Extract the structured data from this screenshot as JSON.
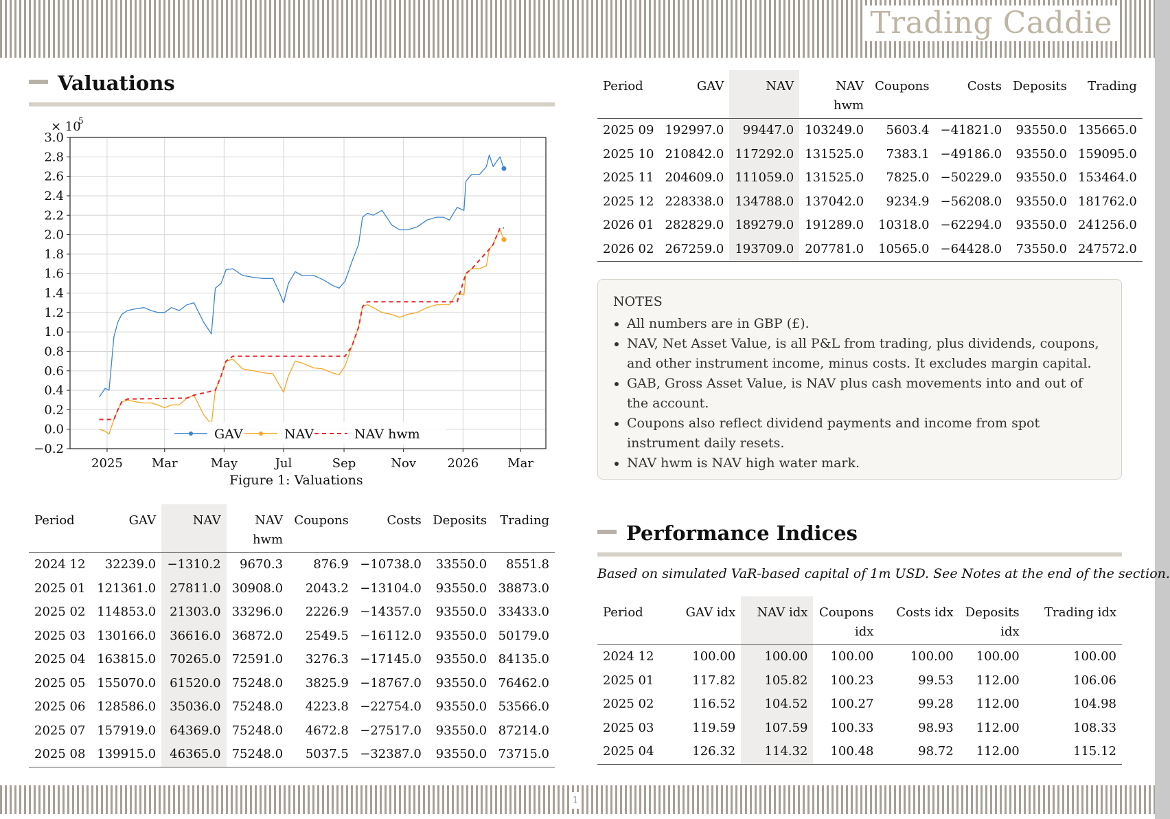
{
  "header": {
    "brand": "Trading Caddie"
  },
  "footer": {
    "page_number": "1"
  },
  "valuations": {
    "title": "Valuations",
    "figure_caption": "Figure 1: Valuations",
    "columns": [
      "Period",
      "GAV",
      "NAV",
      "NAV hwm",
      "Coupons",
      "Costs",
      "Deposits",
      "Trading"
    ],
    "rows_left": [
      [
        "2024 12",
        "32239.0",
        "−1310.2",
        "9670.3",
        "876.9",
        "−10738.0",
        "33550.0",
        "8551.8"
      ],
      [
        "2025 01",
        "121361.0",
        "27811.0",
        "30908.0",
        "2043.2",
        "−13104.0",
        "93550.0",
        "38873.0"
      ],
      [
        "2025 02",
        "114853.0",
        "21303.0",
        "33296.0",
        "2226.9",
        "−14357.0",
        "93550.0",
        "33433.0"
      ],
      [
        "2025 03",
        "130166.0",
        "36616.0",
        "36872.0",
        "2549.5",
        "−16112.0",
        "93550.0",
        "50179.0"
      ],
      [
        "2025 04",
        "163815.0",
        "70265.0",
        "72591.0",
        "3276.3",
        "−17145.0",
        "93550.0",
        "84135.0"
      ],
      [
        "2025 05",
        "155070.0",
        "61520.0",
        "75248.0",
        "3825.9",
        "−18767.0",
        "93550.0",
        "76462.0"
      ],
      [
        "2025 06",
        "128586.0",
        "35036.0",
        "75248.0",
        "4223.8",
        "−22754.0",
        "93550.0",
        "53566.0"
      ],
      [
        "2025 07",
        "157919.0",
        "64369.0",
        "75248.0",
        "4672.8",
        "−27517.0",
        "93550.0",
        "87214.0"
      ],
      [
        "2025 08",
        "139915.0",
        "46365.0",
        "75248.0",
        "5037.5",
        "−32387.0",
        "93550.0",
        "73715.0"
      ]
    ],
    "rows_right": [
      [
        "2025 09",
        "192997.0",
        "99447.0",
        "103249.0",
        "5603.4",
        "−41821.0",
        "93550.0",
        "135665.0"
      ],
      [
        "2025 10",
        "210842.0",
        "117292.0",
        "131525.0",
        "7383.1",
        "−49186.0",
        "93550.0",
        "159095.0"
      ],
      [
        "2025 11",
        "204609.0",
        "111059.0",
        "131525.0",
        "7825.0",
        "−50229.0",
        "93550.0",
        "153464.0"
      ],
      [
        "2025 12",
        "228338.0",
        "134788.0",
        "137042.0",
        "9234.9",
        "−56208.0",
        "93550.0",
        "181762.0"
      ],
      [
        "2026 01",
        "282829.0",
        "189279.0",
        "191289.0",
        "10318.0",
        "−62294.0",
        "93550.0",
        "241256.0"
      ],
      [
        "2026 02",
        "267259.0",
        "193709.0",
        "207781.0",
        "10565.0",
        "−64428.0",
        "73550.0",
        "247572.0"
      ]
    ]
  },
  "notes": {
    "heading": "NOTES",
    "items": [
      "All numbers are in GBP (£).",
      "NAV, Net Asset Value, is all P&L from trading, plus dividends, coupons, and other instrument income, minus costs. It excludes margin capital.",
      "GAB, Gross Asset Value, is NAV plus cash movements into and out of the account.",
      "Coupons also reflect dividend payments and income from spot instrument daily resets.",
      "NAV hwm is NAV high water mark."
    ]
  },
  "performance": {
    "title": "Performance Indices",
    "note": "Based on simulated VaR-based capital of 1m USD. See Notes at the end of the section.",
    "columns": [
      "Period",
      "GAV idx",
      "NAV idx",
      "Coupons idx",
      "Costs idx",
      "Deposits idx",
      "Trading idx"
    ],
    "rows": [
      [
        "2024 12",
        "100.00",
        "100.00",
        "100.00",
        "100.00",
        "100.00",
        "100.00"
      ],
      [
        "2025 01",
        "117.82",
        "105.82",
        "100.23",
        "99.53",
        "112.00",
        "106.06"
      ],
      [
        "2025 02",
        "116.52",
        "104.52",
        "100.27",
        "99.28",
        "112.00",
        "104.98"
      ],
      [
        "2025 03",
        "119.59",
        "107.59",
        "100.33",
        "98.93",
        "112.00",
        "108.33"
      ],
      [
        "2025 04",
        "126.32",
        "114.32",
        "100.48",
        "98.72",
        "112.00",
        "115.12"
      ]
    ]
  },
  "chart_data": {
    "type": "line",
    "multiplier_label": "× 10",
    "multiplier_exponent": "5",
    "ylim": [
      -0.2,
      3.0
    ],
    "yticks": [
      -0.2,
      0.0,
      0.2,
      0.4,
      0.6,
      0.8,
      1.0,
      1.2,
      1.4,
      1.6,
      1.8,
      2.0,
      2.2,
      2.4,
      2.6,
      2.8,
      3.0
    ],
    "ytick_labels": [
      "−0.2",
      "0.0",
      "0.2",
      "0.4",
      "0.6",
      "0.8",
      "1.0",
      "1.2",
      "1.4",
      "1.6",
      "1.8",
      "2.0",
      "2.2",
      "2.4",
      "2.6",
      "2.8",
      "3.0"
    ],
    "xlim": [
      "2024-11-24",
      "2026-03-27"
    ],
    "xticks": [
      "2025-01-01",
      "2025-03-01",
      "2025-05-01",
      "2025-07-01",
      "2025-09-01",
      "2025-11-01",
      "2026-01-01",
      "2026-03-01"
    ],
    "xtick_labels": [
      "2025",
      "Mar",
      "May",
      "Jul",
      "Sep",
      "Nov",
      "2026",
      "Mar"
    ],
    "grid": true,
    "legend": "bottom-center",
    "colors": {
      "GAV": "#3c84cf",
      "NAV": "#f5a623",
      "NAV hwm": "#e8262b"
    },
    "series": [
      {
        "name": "GAV",
        "style": "solid-marker-end",
        "x": [
          "2024-12-24",
          "2024-12-30",
          "2025-01-03",
          "2025-01-08",
          "2025-01-12",
          "2025-01-16",
          "2025-01-22",
          "2025-01-31",
          "2025-02-08",
          "2025-02-15",
          "2025-02-22",
          "2025-03-01",
          "2025-03-08",
          "2025-03-16",
          "2025-03-24",
          "2025-03-31",
          "2025-04-10",
          "2025-04-18",
          "2025-04-22",
          "2025-04-28",
          "2025-05-03",
          "2025-05-10",
          "2025-05-20",
          "2025-06-01",
          "2025-06-10",
          "2025-06-20",
          "2025-06-27",
          "2025-07-01",
          "2025-07-06",
          "2025-07-13",
          "2025-07-20",
          "2025-08-01",
          "2025-08-10",
          "2025-08-20",
          "2025-08-27",
          "2025-09-02",
          "2025-09-09",
          "2025-09-16",
          "2025-09-20",
          "2025-09-25",
          "2025-10-01",
          "2025-10-10",
          "2025-10-20",
          "2025-10-28",
          "2025-11-05",
          "2025-11-15",
          "2025-11-25",
          "2025-12-05",
          "2025-12-12",
          "2025-12-18",
          "2025-12-26",
          "2026-01-02",
          "2026-01-04",
          "2026-01-10",
          "2026-01-18",
          "2026-01-25",
          "2026-01-28",
          "2026-02-01",
          "2026-02-05",
          "2026-02-08",
          "2026-02-12"
        ],
        "y": [
          0.33,
          0.42,
          0.4,
          0.95,
          1.1,
          1.18,
          1.22,
          1.24,
          1.25,
          1.22,
          1.2,
          1.2,
          1.25,
          1.22,
          1.28,
          1.3,
          1.1,
          0.98,
          1.45,
          1.5,
          1.64,
          1.65,
          1.58,
          1.56,
          1.55,
          1.55,
          1.4,
          1.3,
          1.5,
          1.62,
          1.58,
          1.58,
          1.54,
          1.48,
          1.45,
          1.52,
          1.72,
          1.9,
          2.18,
          2.22,
          2.2,
          2.25,
          2.1,
          2.05,
          2.05,
          2.08,
          2.15,
          2.18,
          2.18,
          2.15,
          2.28,
          2.25,
          2.55,
          2.62,
          2.62,
          2.7,
          2.82,
          2.7,
          2.76,
          2.8,
          2.68
        ]
      },
      {
        "name": "NAV",
        "style": "solid-marker-end",
        "x": [
          "2024-12-24",
          "2024-12-30",
          "2025-01-03",
          "2025-01-08",
          "2025-01-12",
          "2025-01-16",
          "2025-01-22",
          "2025-01-31",
          "2025-02-08",
          "2025-02-15",
          "2025-02-22",
          "2025-03-01",
          "2025-03-08",
          "2025-03-16",
          "2025-03-24",
          "2025-03-31",
          "2025-04-10",
          "2025-04-18",
          "2025-04-22",
          "2025-04-28",
          "2025-05-03",
          "2025-05-10",
          "2025-05-20",
          "2025-06-01",
          "2025-06-10",
          "2025-06-20",
          "2025-06-27",
          "2025-07-01",
          "2025-07-06",
          "2025-07-13",
          "2025-07-20",
          "2025-08-01",
          "2025-08-10",
          "2025-08-20",
          "2025-08-27",
          "2025-09-02",
          "2025-09-09",
          "2025-09-16",
          "2025-09-20",
          "2025-09-25",
          "2025-10-01",
          "2025-10-10",
          "2025-10-20",
          "2025-10-28",
          "2025-11-05",
          "2025-11-15",
          "2025-11-25",
          "2025-12-05",
          "2025-12-12",
          "2025-12-18",
          "2025-12-26",
          "2026-01-02",
          "2026-01-04",
          "2026-01-10",
          "2026-01-18",
          "2026-01-25",
          "2026-01-28",
          "2026-02-01",
          "2026-02-05",
          "2026-02-08",
          "2026-02-12"
        ],
        "y": [
          0.0,
          -0.02,
          -0.05,
          0.1,
          0.2,
          0.28,
          0.3,
          0.28,
          0.27,
          0.27,
          0.25,
          0.22,
          0.25,
          0.25,
          0.32,
          0.35,
          0.15,
          0.05,
          0.4,
          0.55,
          0.7,
          0.72,
          0.62,
          0.6,
          0.58,
          0.57,
          0.45,
          0.38,
          0.55,
          0.7,
          0.68,
          0.63,
          0.62,
          0.58,
          0.56,
          0.65,
          0.85,
          1.05,
          1.26,
          1.28,
          1.25,
          1.2,
          1.18,
          1.15,
          1.18,
          1.2,
          1.25,
          1.28,
          1.28,
          1.28,
          1.4,
          1.38,
          1.6,
          1.65,
          1.65,
          1.68,
          1.85,
          1.9,
          2.0,
          2.05,
          1.95
        ]
      },
      {
        "name": "NAV hwm",
        "style": "dashed",
        "x": [
          "2024-12-24",
          "2025-01-08",
          "2025-01-12",
          "2025-01-16",
          "2025-01-22",
          "2025-03-24",
          "2025-03-31",
          "2025-04-22",
          "2025-04-28",
          "2025-05-03",
          "2025-05-10",
          "2025-09-02",
          "2025-09-09",
          "2025-09-16",
          "2025-09-20",
          "2025-09-25",
          "2025-12-26",
          "2026-01-04",
          "2026-01-10",
          "2026-01-28",
          "2026-02-01",
          "2026-02-05",
          "2026-02-08",
          "2026-02-12"
        ],
        "y": [
          0.1,
          0.1,
          0.2,
          0.28,
          0.31,
          0.32,
          0.35,
          0.4,
          0.55,
          0.7,
          0.75,
          0.75,
          0.85,
          1.05,
          1.26,
          1.31,
          1.31,
          1.6,
          1.65,
          1.85,
          1.9,
          2.0,
          2.07,
          2.07
        ]
      }
    ]
  }
}
